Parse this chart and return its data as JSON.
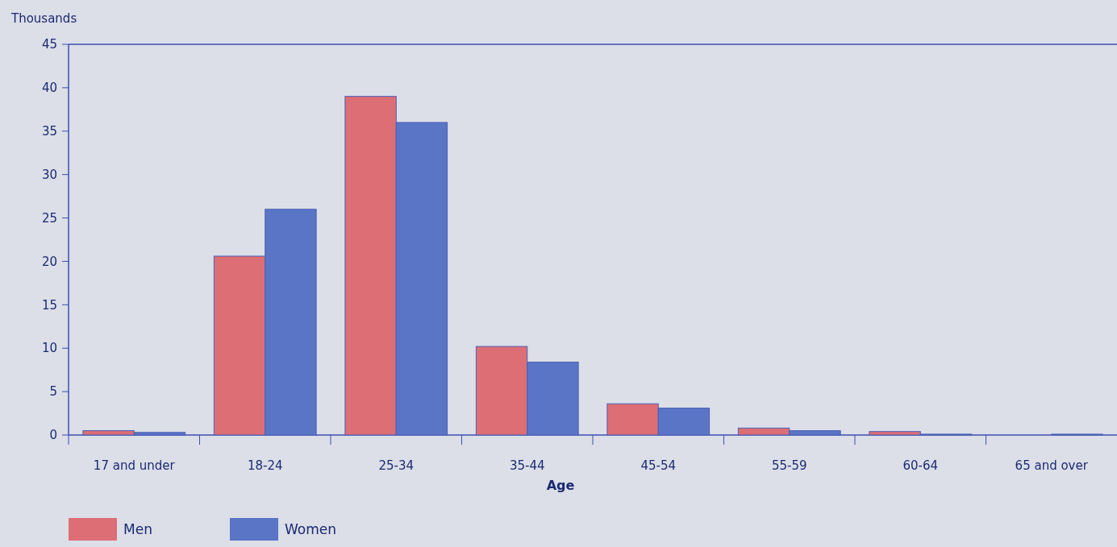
{
  "chart_data": {
    "type": "bar",
    "xlabel": "Age",
    "ylabel": "Thousands",
    "categories": [
      "17 and under",
      "18-24",
      "25-34",
      "35-44",
      "45-54",
      "55-59",
      "60-64",
      "65 and over"
    ],
    "series": [
      {
        "name": "Men",
        "color": "#dd6e76",
        "values": [
          0.5,
          20.6,
          39,
          10.2,
          3.6,
          0.8,
          0.4,
          0
        ]
      },
      {
        "name": "Women",
        "color": "#5a74c6",
        "values": [
          0.3,
          26,
          36,
          8.4,
          3.1,
          0.5,
          0.1,
          0.1
        ]
      }
    ],
    "ylim": [
      0,
      45
    ],
    "yticks": [
      0,
      5,
      10,
      15,
      20,
      25,
      30,
      35,
      40,
      45
    ],
    "legend": "bottom left"
  }
}
